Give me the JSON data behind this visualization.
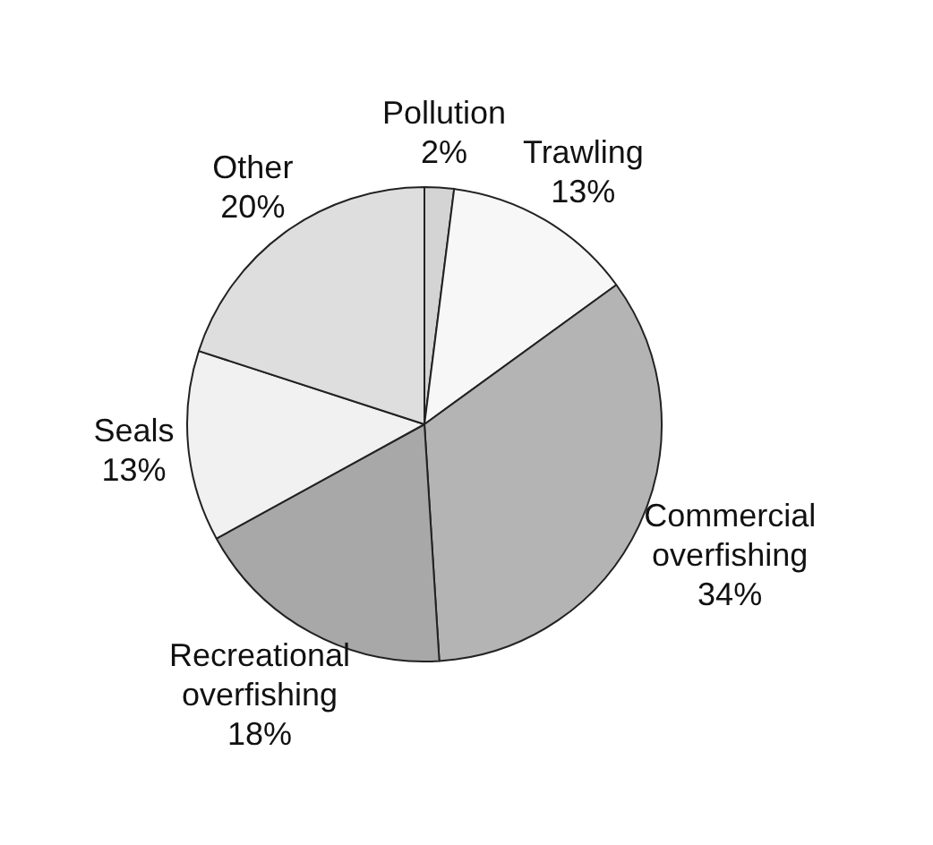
{
  "chart_data": {
    "type": "pie",
    "categories": [
      "Pollution",
      "Trawling",
      "Commercial overfishing",
      "Recreational overfishing",
      "Seals",
      "Other"
    ],
    "values": [
      2,
      13,
      34,
      18,
      13,
      20
    ],
    "value_labels": [
      "2%",
      "13%",
      "34%",
      "18%",
      "13%",
      "20%"
    ],
    "colors": [
      "#d4d4d4",
      "#f7f7f7",
      "#b4b4b4",
      "#a8a8a8",
      "#f1f1f1",
      "#dedede"
    ],
    "legend": false
  }
}
